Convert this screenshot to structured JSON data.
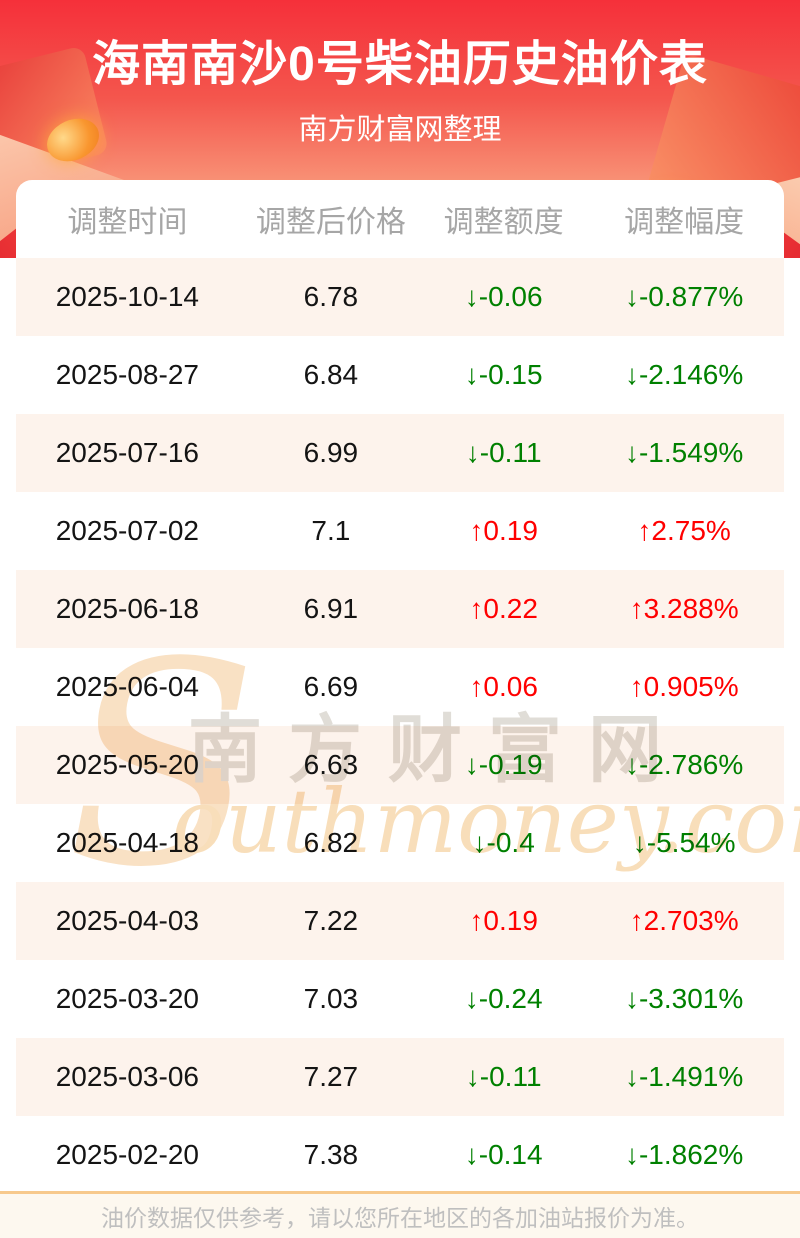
{
  "theme": {
    "up_color": "#ff0000",
    "down_color": "#008000",
    "hero_top": "#f5303a",
    "hero_bottom": "#fcc09e",
    "stripe": "#fdf3ec",
    "footer_bg": "#fdf8ef",
    "footer_border": "#f7c98c"
  },
  "header": {
    "title": "海南南沙0号柴油历史油价表",
    "subtitle": "南方财富网整理"
  },
  "table": {
    "columns": [
      "调整时间",
      "调整后价格",
      "调整额度",
      "调整幅度"
    ],
    "arrow_up": "↑",
    "arrow_down": "↓",
    "rows": [
      {
        "date": "2025-10-14",
        "price": "6.78",
        "direction": "down",
        "change": "-0.06",
        "percent": "-0.877%"
      },
      {
        "date": "2025-08-27",
        "price": "6.84",
        "direction": "down",
        "change": "-0.15",
        "percent": "-2.146%"
      },
      {
        "date": "2025-07-16",
        "price": "6.99",
        "direction": "down",
        "change": "-0.11",
        "percent": "-1.549%"
      },
      {
        "date": "2025-07-02",
        "price": "7.1",
        "direction": "up",
        "change": "0.19",
        "percent": "2.75%"
      },
      {
        "date": "2025-06-18",
        "price": "6.91",
        "direction": "up",
        "change": "0.22",
        "percent": "3.288%"
      },
      {
        "date": "2025-06-04",
        "price": "6.69",
        "direction": "up",
        "change": "0.06",
        "percent": "0.905%"
      },
      {
        "date": "2025-05-20",
        "price": "6.63",
        "direction": "down",
        "change": "-0.19",
        "percent": "-2.786%"
      },
      {
        "date": "2025-04-18",
        "price": "6.82",
        "direction": "down",
        "change": "-0.4",
        "percent": "-5.54%"
      },
      {
        "date": "2025-04-03",
        "price": "7.22",
        "direction": "up",
        "change": "0.19",
        "percent": "2.703%"
      },
      {
        "date": "2025-03-20",
        "price": "7.03",
        "direction": "down",
        "change": "-0.24",
        "percent": "-3.301%"
      },
      {
        "date": "2025-03-06",
        "price": "7.27",
        "direction": "down",
        "change": "-0.11",
        "percent": "-1.491%"
      },
      {
        "date": "2025-02-20",
        "price": "7.38",
        "direction": "down",
        "change": "-0.14",
        "percent": "-1.862%"
      }
    ]
  },
  "watermark": {
    "initial": "S",
    "cn": "南方财富网",
    "en": "outhmoney.com"
  },
  "footer": {
    "note": "油价数据仅供参考，请以您所在地区的各加油站报价为准。"
  },
  "chart_data": {
    "type": "table",
    "title": "海南南沙0号柴油历史油价表",
    "subtitle": "南方财富网整理",
    "columns": [
      "调整时间",
      "调整后价格",
      "调整额度",
      "调整幅度"
    ],
    "rows": [
      [
        "2025-10-14",
        6.78,
        -0.06,
        "-0.877%"
      ],
      [
        "2025-08-27",
        6.84,
        -0.15,
        "-2.146%"
      ],
      [
        "2025-07-16",
        6.99,
        -0.11,
        "-1.549%"
      ],
      [
        "2025-07-02",
        7.1,
        0.19,
        "2.75%"
      ],
      [
        "2025-06-18",
        6.91,
        0.22,
        "3.288%"
      ],
      [
        "2025-06-04",
        6.69,
        0.06,
        "0.905%"
      ],
      [
        "2025-05-20",
        6.63,
        -0.19,
        "-2.786%"
      ],
      [
        "2025-04-18",
        6.82,
        -0.4,
        "-5.54%"
      ],
      [
        "2025-04-03",
        7.22,
        0.19,
        "2.703%"
      ],
      [
        "2025-03-20",
        7.03,
        -0.24,
        "-3.301%"
      ],
      [
        "2025-03-06",
        7.27,
        -0.11,
        "-1.491%"
      ],
      [
        "2025-02-20",
        7.38,
        -0.14,
        "-1.862%"
      ]
    ]
  }
}
